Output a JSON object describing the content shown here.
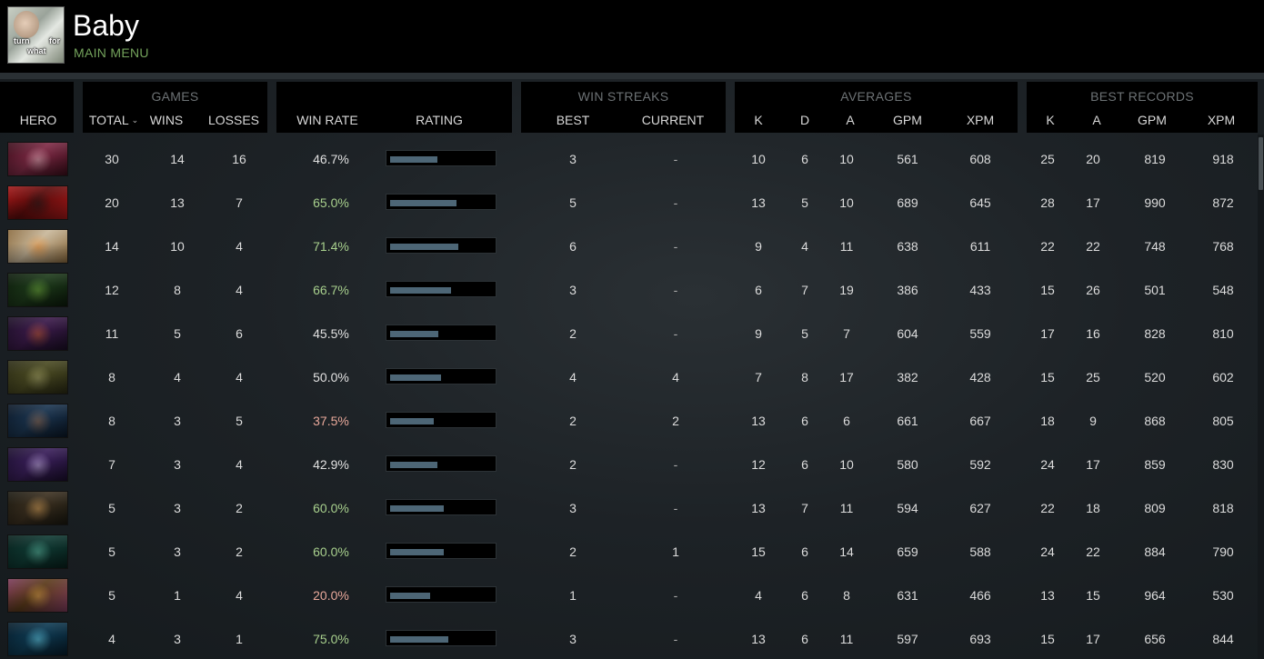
{
  "profile": {
    "name": "Baby",
    "nav_label": "MAIN MENU",
    "avatar_caption": [
      "turn",
      "for",
      "what"
    ]
  },
  "groups": {
    "games": "GAMES",
    "win_streaks": "WIN STREAKS",
    "averages": "AVERAGES",
    "best_records": "BEST RECORDS"
  },
  "columns": {
    "hero": "HERO",
    "total": "TOTAL",
    "wins": "WINS",
    "losses": "LOSSES",
    "win_rate": "WIN RATE",
    "rating": "RATING",
    "best": "BEST",
    "current": "CURRENT",
    "avg_k": "K",
    "avg_d": "D",
    "avg_a": "A",
    "avg_gpm": "GPM",
    "avg_xpm": "XPM",
    "best_k": "K",
    "best_a": "A",
    "best_gpm": "GPM",
    "best_xpm": "XPM"
  },
  "sort": {
    "column": "total",
    "direction": "descending",
    "icon": "chevron-down-icon"
  },
  "colors": {
    "accent_green": "#74a35c",
    "win_rate_high": "#a8d08d",
    "win_rate_low": "#e8a89a",
    "win_rate_neutral": "#e0e0e0",
    "rating_fill": "#4d6676"
  },
  "rows": [
    {
      "hero_icon": "hero-portrait-1",
      "hero_colors": [
        "#7d2a45",
        "#d6b0b7",
        "#3b0d1a"
      ],
      "total": "30",
      "wins": "14",
      "losses": "16",
      "win_rate": "46.7%",
      "rate_tone": "neutral",
      "rating": 0.467,
      "best": "3",
      "current": "-",
      "avg_k": "10",
      "avg_d": "6",
      "avg_a": "10",
      "avg_gpm": "561",
      "avg_xpm": "608",
      "best_k": "25",
      "best_a": "20",
      "best_gpm": "819",
      "best_xpm": "918"
    },
    {
      "hero_icon": "hero-portrait-2",
      "hero_colors": [
        "#5a0b0b",
        "#1a1a1a",
        "#a01818"
      ],
      "total": "20",
      "wins": "13",
      "losses": "7",
      "win_rate": "65.0%",
      "rate_tone": "high",
      "rating": 0.65,
      "best": "5",
      "current": "-",
      "avg_k": "13",
      "avg_d": "5",
      "avg_a": "10",
      "avg_gpm": "689",
      "avg_xpm": "645",
      "best_k": "28",
      "best_a": "17",
      "best_gpm": "990",
      "best_xpm": "872"
    },
    {
      "hero_icon": "hero-portrait-3",
      "hero_colors": [
        "#c8b79a",
        "#e98a2e",
        "#8a6a3e"
      ],
      "total": "14",
      "wins": "10",
      "losses": "4",
      "win_rate": "71.4%",
      "rate_tone": "high",
      "rating": 0.67,
      "best": "6",
      "current": "-",
      "avg_k": "9",
      "avg_d": "4",
      "avg_a": "11",
      "avg_gpm": "638",
      "avg_xpm": "611",
      "best_k": "22",
      "best_a": "22",
      "best_gpm": "748",
      "best_xpm": "768"
    },
    {
      "hero_icon": "hero-portrait-4",
      "hero_colors": [
        "#1d3a1a",
        "#6fa83b",
        "#0c1a0b"
      ],
      "total": "12",
      "wins": "8",
      "losses": "4",
      "win_rate": "66.7%",
      "rate_tone": "high",
      "rating": 0.6,
      "best": "3",
      "current": "-",
      "avg_k": "6",
      "avg_d": "7",
      "avg_a": "19",
      "avg_gpm": "386",
      "avg_xpm": "433",
      "best_k": "15",
      "best_a": "26",
      "best_gpm": "501",
      "best_xpm": "548"
    },
    {
      "hero_icon": "hero-portrait-5",
      "hero_colors": [
        "#3b1a4a",
        "#c25a2e",
        "#1a0e24"
      ],
      "total": "11",
      "wins": "5",
      "losses": "6",
      "win_rate": "45.5%",
      "rate_tone": "neutral",
      "rating": 0.47,
      "best": "2",
      "current": "-",
      "avg_k": "9",
      "avg_d": "5",
      "avg_a": "7",
      "avg_gpm": "604",
      "avg_xpm": "559",
      "best_k": "17",
      "best_a": "16",
      "best_gpm": "828",
      "best_xpm": "810"
    },
    {
      "hero_icon": "hero-portrait-6",
      "hero_colors": [
        "#4a4a22",
        "#a2a06a",
        "#2a2a14"
      ],
      "total": "8",
      "wins": "4",
      "losses": "4",
      "win_rate": "50.0%",
      "rate_tone": "neutral",
      "rating": 0.5,
      "best": "4",
      "current": "4",
      "avg_k": "7",
      "avg_d": "8",
      "avg_a": "17",
      "avg_gpm": "382",
      "avg_xpm": "428",
      "best_k": "15",
      "best_a": "25",
      "best_gpm": "520",
      "best_xpm": "602"
    },
    {
      "hero_icon": "hero-portrait-7",
      "hero_colors": [
        "#1b3550",
        "#9a6a4a",
        "#0b1726"
      ],
      "total": "8",
      "wins": "3",
      "losses": "5",
      "win_rate": "37.5%",
      "rate_tone": "low",
      "rating": 0.43,
      "best": "2",
      "current": "2",
      "avg_k": "13",
      "avg_d": "6",
      "avg_a": "6",
      "avg_gpm": "661",
      "avg_xpm": "667",
      "best_k": "18",
      "best_a": "9",
      "best_gpm": "868",
      "best_xpm": "805"
    },
    {
      "hero_icon": "hero-portrait-8",
      "hero_colors": [
        "#3a1f5a",
        "#c7b6e0",
        "#1a0e2c"
      ],
      "total": "7",
      "wins": "3",
      "losses": "4",
      "win_rate": "42.9%",
      "rate_tone": "neutral",
      "rating": 0.46,
      "best": "2",
      "current": "-",
      "avg_k": "12",
      "avg_d": "6",
      "avg_a": "10",
      "avg_gpm": "580",
      "avg_xpm": "592",
      "best_k": "24",
      "best_a": "17",
      "best_gpm": "859",
      "best_xpm": "830"
    },
    {
      "hero_icon": "hero-portrait-9",
      "hero_colors": [
        "#3c3020",
        "#d9a35a",
        "#1a1810"
      ],
      "total": "5",
      "wins": "3",
      "losses": "2",
      "win_rate": "60.0%",
      "rate_tone": "high",
      "rating": 0.53,
      "best": "3",
      "current": "-",
      "avg_k": "13",
      "avg_d": "7",
      "avg_a": "11",
      "avg_gpm": "594",
      "avg_xpm": "627",
      "best_k": "22",
      "best_a": "18",
      "best_gpm": "809",
      "best_xpm": "818"
    },
    {
      "hero_icon": "hero-portrait-10",
      "hero_colors": [
        "#0f3a33",
        "#5fb7a0",
        "#08201c"
      ],
      "total": "5",
      "wins": "3",
      "losses": "2",
      "win_rate": "60.0%",
      "rate_tone": "high",
      "rating": 0.53,
      "best": "2",
      "current": "1",
      "avg_k": "15",
      "avg_d": "6",
      "avg_a": "14",
      "avg_gpm": "659",
      "avg_xpm": "588",
      "best_k": "24",
      "best_a": "22",
      "best_gpm": "884",
      "best_xpm": "790"
    },
    {
      "hero_icon": "hero-portrait-11",
      "hero_colors": [
        "#5a3a1a",
        "#d6a04a",
        "#7a3a5a"
      ],
      "total": "5",
      "wins": "1",
      "losses": "4",
      "win_rate": "20.0%",
      "rate_tone": "low",
      "rating": 0.39,
      "best": "1",
      "current": "-",
      "avg_k": "4",
      "avg_d": "6",
      "avg_a": "8",
      "avg_gpm": "631",
      "avg_xpm": "466",
      "best_k": "13",
      "best_a": "15",
      "best_gpm": "964",
      "best_xpm": "530"
    },
    {
      "hero_icon": "hero-portrait-12",
      "hero_colors": [
        "#0e3a52",
        "#6ad0e6",
        "#071c2a"
      ],
      "total": "4",
      "wins": "3",
      "losses": "1",
      "win_rate": "75.0%",
      "rate_tone": "high",
      "rating": 0.57,
      "best": "3",
      "current": "-",
      "avg_k": "13",
      "avg_d": "6",
      "avg_a": "11",
      "avg_gpm": "597",
      "avg_xpm": "693",
      "best_k": "15",
      "best_a": "17",
      "best_gpm": "656",
      "best_xpm": "844"
    }
  ]
}
